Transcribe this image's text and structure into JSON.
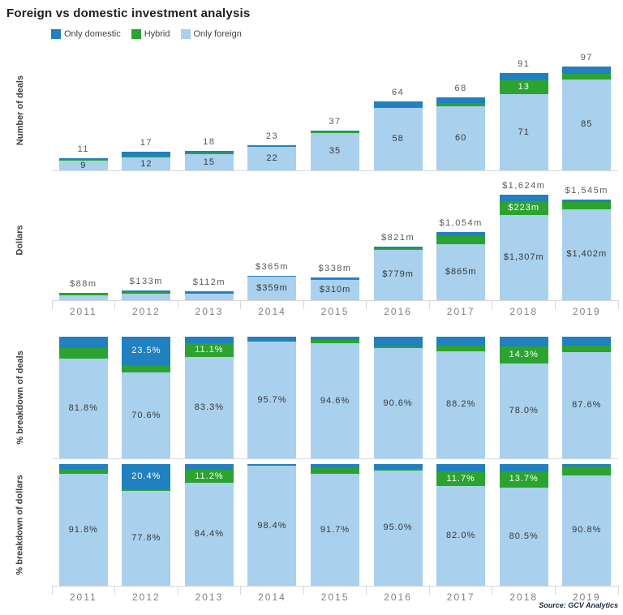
{
  "title": "Foreign vs domestic investment analysis",
  "source": "Source: GCV Analytics",
  "colors": {
    "domestic": "#2180c0",
    "hybrid": "#2ca330",
    "foreign": "#a9d0ed",
    "axis": "#d9d9d9"
  },
  "legend": [
    {
      "label": "Only domestic",
      "color_key": "domestic"
    },
    {
      "label": "Hybrid",
      "color_key": "hybrid"
    },
    {
      "label": "Only foreign",
      "color_key": "foreign"
    }
  ],
  "years": [
    "2011",
    "2012",
    "2013",
    "2014",
    "2015",
    "2016",
    "2017",
    "2018",
    "2019"
  ],
  "chart_data": [
    {
      "type": "bar",
      "stacked": true,
      "ylabel": "Number of deals",
      "categories": [
        "2011",
        "2012",
        "2013",
        "2014",
        "2015",
        "2016",
        "2017",
        "2018",
        "2019"
      ],
      "series": [
        {
          "name": "Only domestic",
          "color_key": "domestic",
          "values": [
            1,
            4,
            1,
            1,
            1,
            5,
            5,
            7,
            7
          ]
        },
        {
          "name": "Hybrid",
          "color_key": "hybrid",
          "values": [
            1,
            1,
            2,
            0,
            1,
            1,
            3,
            13,
            5
          ]
        },
        {
          "name": "Only foreign",
          "color_key": "foreign",
          "values": [
            9,
            12,
            15,
            22,
            35,
            58,
            60,
            71,
            85
          ]
        }
      ],
      "totals": [
        11,
        17,
        18,
        23,
        37,
        64,
        68,
        91,
        97
      ],
      "labels": {
        "total": [
          "11",
          "17",
          "18",
          "23",
          "37",
          "64",
          "68",
          "91",
          "97"
        ],
        "domestic": [
          null,
          null,
          null,
          null,
          null,
          null,
          null,
          null,
          null
        ],
        "hybrid": [
          null,
          null,
          null,
          null,
          null,
          null,
          null,
          "13",
          null
        ],
        "foreign": [
          "9",
          "12",
          "15",
          "22",
          "35",
          "58",
          "60",
          "71",
          "85"
        ]
      },
      "ylim": [
        0,
        97
      ],
      "grid": false,
      "legend_position": "top"
    },
    {
      "type": "bar",
      "stacked": true,
      "ylabel": "Dollars",
      "categories": [
        "2011",
        "2012",
        "2013",
        "2014",
        "2015",
        "2016",
        "2017",
        "2018",
        "2019"
      ],
      "series": [
        {
          "name": "Only domestic",
          "color_key": "domestic",
          "values": [
            3.6,
            27.1,
            4.9,
            6,
            9.4,
            33,
            66,
            94,
            35
          ]
        },
        {
          "name": "Hybrid",
          "color_key": "hybrid",
          "values": [
            3.6,
            2.4,
            12.6,
            0,
            18.6,
            9,
            123,
            223,
            108
          ]
        },
        {
          "name": "Only foreign",
          "color_key": "foreign",
          "values": [
            80.8,
            103.5,
            94.5,
            359,
            310,
            779,
            865,
            1307,
            1402
          ]
        }
      ],
      "totals": [
        88,
        133,
        112,
        365,
        338,
        821,
        1054,
        1624,
        1545
      ],
      "labels": {
        "total": [
          "$88m",
          "$133m",
          "$112m",
          "$365m",
          "$338m",
          "$821m",
          "$1,054m",
          "$1,624m",
          "$1,545m"
        ],
        "domestic": [
          null,
          null,
          null,
          null,
          null,
          null,
          null,
          null,
          null
        ],
        "hybrid": [
          null,
          null,
          null,
          null,
          null,
          null,
          null,
          "$223m",
          null
        ],
        "foreign": [
          null,
          null,
          null,
          "$359m",
          "$310m",
          "$779m",
          "$865m",
          "$1,307m",
          "$1,402m"
        ]
      },
      "unit": "$m",
      "ylim": [
        0,
        1624
      ],
      "grid": false
    },
    {
      "type": "bar",
      "stacked": true,
      "ylabel": "% breakdown of deals",
      "categories": [
        "2011",
        "2012",
        "2013",
        "2014",
        "2015",
        "2016",
        "2017",
        "2018",
        "2019"
      ],
      "series": [
        {
          "name": "Only domestic",
          "color_key": "domestic",
          "values": [
            9.1,
            23.5,
            5.6,
            4.3,
            2.7,
            7.8,
            7.4,
            7.7,
            7.2
          ]
        },
        {
          "name": "Hybrid",
          "color_key": "hybrid",
          "values": [
            9.1,
            5.9,
            11.1,
            0,
            2.7,
            1.6,
            4.4,
            14.3,
            5.2
          ]
        },
        {
          "name": "Only foreign",
          "color_key": "foreign",
          "values": [
            81.8,
            70.6,
            83.3,
            95.7,
            94.6,
            90.6,
            88.2,
            78.0,
            87.6
          ]
        }
      ],
      "totals": [
        100,
        100,
        100,
        100,
        100,
        100,
        100,
        100,
        100
      ],
      "labels": {
        "total": null,
        "domestic": [
          null,
          "23.5%",
          null,
          null,
          null,
          null,
          null,
          null,
          null
        ],
        "hybrid": [
          null,
          null,
          "11.1%",
          null,
          null,
          null,
          null,
          "14.3%",
          null
        ],
        "foreign": [
          "81.8%",
          "70.6%",
          "83.3%",
          "95.7%",
          "94.6%",
          "90.6%",
          "88.2%",
          "78.0%",
          "87.6%"
        ]
      },
      "unit": "%",
      "ylim": [
        0,
        100
      ],
      "grid": false
    },
    {
      "type": "bar",
      "stacked": true,
      "ylabel": "% breakdown of dollars",
      "categories": [
        "2011",
        "2012",
        "2013",
        "2014",
        "2015",
        "2016",
        "2017",
        "2018",
        "2019"
      ],
      "series": [
        {
          "name": "Only domestic",
          "color_key": "domestic",
          "values": [
            4.1,
            20.4,
            4.4,
            1.6,
            2.8,
            3.9,
            6.3,
            5.8,
            2.2
          ]
        },
        {
          "name": "Hybrid",
          "color_key": "hybrid",
          "values": [
            4.1,
            1.8,
            11.2,
            0,
            5.5,
            1.1,
            11.7,
            13.7,
            7.0
          ]
        },
        {
          "name": "Only foreign",
          "color_key": "foreign",
          "values": [
            91.8,
            77.8,
            84.4,
            98.4,
            91.7,
            95.0,
            82.0,
            80.5,
            90.8
          ]
        }
      ],
      "totals": [
        100,
        100,
        100,
        100,
        100,
        100,
        100,
        100,
        100
      ],
      "labels": {
        "total": null,
        "domestic": [
          null,
          "20.4%",
          null,
          null,
          null,
          null,
          null,
          null,
          null
        ],
        "hybrid": [
          null,
          null,
          "11.2%",
          null,
          null,
          null,
          "11.7%",
          "13.7%",
          null
        ],
        "foreign": [
          "91.8%",
          "77.8%",
          "84.4%",
          "98.4%",
          "91.7%",
          "95.0%",
          "82.0%",
          "80.5%",
          "90.8%"
        ]
      },
      "unit": "%",
      "ylim": [
        0,
        100
      ],
      "grid": false
    }
  ]
}
